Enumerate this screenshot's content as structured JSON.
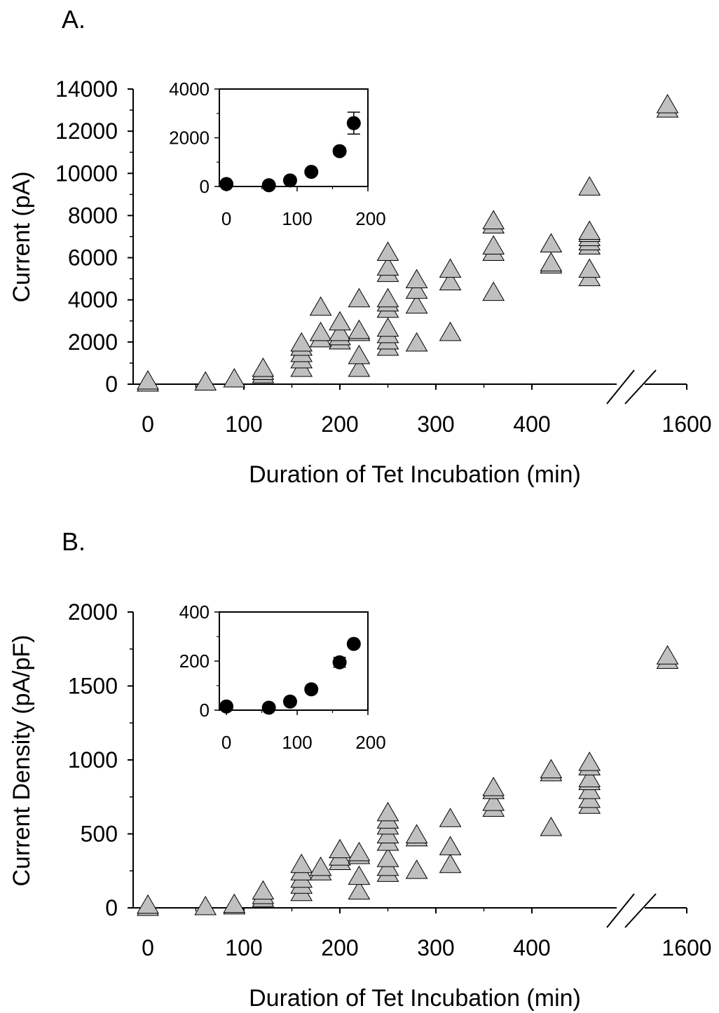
{
  "chart_data": [
    {
      "panel_label": "A.",
      "type": "scatter",
      "xlabel": "Duration of Tet Incubation (min)",
      "ylabel": "Current (pA)",
      "x_tick_labels": [
        "0",
        "100",
        "200",
        "300",
        "400",
        "1600"
      ],
      "x_ticks": [
        0,
        100,
        200,
        300,
        400,
        1600
      ],
      "y_ticks": [
        0,
        2000,
        4000,
        6000,
        8000,
        10000,
        12000,
        14000
      ],
      "y_tick_labels": [
        "0",
        "2000",
        "4000",
        "6000",
        "8000",
        "10000",
        "12000",
        "14000"
      ],
      "ylim": [
        0,
        14000
      ],
      "x_axis_break": [
        470,
        1580
      ],
      "marker": "triangle",
      "colors": {
        "marker_fill": "#c0c0c0",
        "marker_edge": "#000000"
      },
      "points": [
        {
          "x": 0,
          "y": 100
        },
        {
          "x": 0,
          "y": 200
        },
        {
          "x": 60,
          "y": 150
        },
        {
          "x": 90,
          "y": 300
        },
        {
          "x": 120,
          "y": 500
        },
        {
          "x": 120,
          "y": 650
        },
        {
          "x": 120,
          "y": 800
        },
        {
          "x": 160,
          "y": 800
        },
        {
          "x": 160,
          "y": 1200
        },
        {
          "x": 160,
          "y": 1500
        },
        {
          "x": 160,
          "y": 1800
        },
        {
          "x": 160,
          "y": 2000
        },
        {
          "x": 180,
          "y": 2200
        },
        {
          "x": 180,
          "y": 2500
        },
        {
          "x": 180,
          "y": 3700
        },
        {
          "x": 200,
          "y": 2100
        },
        {
          "x": 200,
          "y": 2300
        },
        {
          "x": 200,
          "y": 2500
        },
        {
          "x": 200,
          "y": 3000
        },
        {
          "x": 220,
          "y": 800
        },
        {
          "x": 220,
          "y": 1400
        },
        {
          "x": 220,
          "y": 2500
        },
        {
          "x": 220,
          "y": 2600
        },
        {
          "x": 220,
          "y": 4100
        },
        {
          "x": 250,
          "y": 1800
        },
        {
          "x": 250,
          "y": 2100
        },
        {
          "x": 250,
          "y": 2400
        },
        {
          "x": 250,
          "y": 2700
        },
        {
          "x": 250,
          "y": 3600
        },
        {
          "x": 250,
          "y": 3900
        },
        {
          "x": 250,
          "y": 4100
        },
        {
          "x": 250,
          "y": 5300
        },
        {
          "x": 250,
          "y": 5600
        },
        {
          "x": 250,
          "y": 6300
        },
        {
          "x": 280,
          "y": 2000
        },
        {
          "x": 280,
          "y": 3800
        },
        {
          "x": 280,
          "y": 4500
        },
        {
          "x": 280,
          "y": 5000
        },
        {
          "x": 315,
          "y": 2500
        },
        {
          "x": 315,
          "y": 4900
        },
        {
          "x": 315,
          "y": 5500
        },
        {
          "x": 360,
          "y": 4400
        },
        {
          "x": 360,
          "y": 6300
        },
        {
          "x": 360,
          "y": 6600
        },
        {
          "x": 360,
          "y": 7600
        },
        {
          "x": 360,
          "y": 7800
        },
        {
          "x": 420,
          "y": 5700
        },
        {
          "x": 420,
          "y": 5800
        },
        {
          "x": 420,
          "y": 6700
        },
        {
          "x": 460,
          "y": 5100
        },
        {
          "x": 460,
          "y": 5500
        },
        {
          "x": 460,
          "y": 6600
        },
        {
          "x": 460,
          "y": 6800
        },
        {
          "x": 460,
          "y": 7000
        },
        {
          "x": 460,
          "y": 7200
        },
        {
          "x": 460,
          "y": 7300
        },
        {
          "x": 460,
          "y": 9400
        },
        {
          "x": 1590,
          "y": 13100
        },
        {
          "x": 1590,
          "y": 13300
        }
      ],
      "inset": {
        "type": "scatter",
        "x_ticks": [
          0,
          100,
          200
        ],
        "x_tick_labels": [
          "0",
          "100",
          "200"
        ],
        "y_ticks": [
          0,
          2000,
          4000
        ],
        "y_tick_labels": [
          "0",
          "2000",
          "4000"
        ],
        "xlim": [
          -10,
          200
        ],
        "ylim": [
          0,
          4000
        ],
        "marker": "circle",
        "colors": {
          "marker_fill": "#000000"
        },
        "points": [
          {
            "x": 0,
            "y": 100,
            "err": 60
          },
          {
            "x": 60,
            "y": 50,
            "err": 40
          },
          {
            "x": 90,
            "y": 250,
            "err": 60
          },
          {
            "x": 120,
            "y": 600,
            "err": 80
          },
          {
            "x": 160,
            "y": 1450,
            "err": 130
          },
          {
            "x": 180,
            "y": 2600,
            "err": 450
          }
        ]
      }
    },
    {
      "panel_label": "B.",
      "type": "scatter",
      "xlabel": "Duration of Tet Incubation (min)",
      "ylabel": "Current Density (pA/pF)",
      "x_tick_labels": [
        "0",
        "100",
        "200",
        "300",
        "400",
        "1600"
      ],
      "x_ticks": [
        0,
        100,
        200,
        300,
        400,
        1600
      ],
      "y_ticks": [
        0,
        500,
        1000,
        1500,
        2000
      ],
      "y_tick_labels": [
        "0",
        "500",
        "1000",
        "1500",
        "2000"
      ],
      "ylim": [
        0,
        2000
      ],
      "x_axis_break": [
        470,
        1580
      ],
      "marker": "triangle",
      "colors": {
        "marker_fill": "#c0c0c0",
        "marker_edge": "#000000"
      },
      "points": [
        {
          "x": 0,
          "y": 10
        },
        {
          "x": 0,
          "y": 25
        },
        {
          "x": 60,
          "y": 15
        },
        {
          "x": 90,
          "y": 20
        },
        {
          "x": 90,
          "y": 30
        },
        {
          "x": 120,
          "y": 70
        },
        {
          "x": 120,
          "y": 90
        },
        {
          "x": 120,
          "y": 120
        },
        {
          "x": 160,
          "y": 110
        },
        {
          "x": 160,
          "y": 160
        },
        {
          "x": 160,
          "y": 200
        },
        {
          "x": 160,
          "y": 250
        },
        {
          "x": 160,
          "y": 300
        },
        {
          "x": 180,
          "y": 250
        },
        {
          "x": 180,
          "y": 280
        },
        {
          "x": 200,
          "y": 320
        },
        {
          "x": 200,
          "y": 350
        },
        {
          "x": 200,
          "y": 400
        },
        {
          "x": 220,
          "y": 120
        },
        {
          "x": 220,
          "y": 220
        },
        {
          "x": 220,
          "y": 360
        },
        {
          "x": 220,
          "y": 380
        },
        {
          "x": 250,
          "y": 240
        },
        {
          "x": 250,
          "y": 280
        },
        {
          "x": 250,
          "y": 340
        },
        {
          "x": 250,
          "y": 450
        },
        {
          "x": 250,
          "y": 500
        },
        {
          "x": 250,
          "y": 560
        },
        {
          "x": 250,
          "y": 600
        },
        {
          "x": 250,
          "y": 650
        },
        {
          "x": 280,
          "y": 260
        },
        {
          "x": 280,
          "y": 480
        },
        {
          "x": 280,
          "y": 500
        },
        {
          "x": 315,
          "y": 300
        },
        {
          "x": 315,
          "y": 420
        },
        {
          "x": 315,
          "y": 610
        },
        {
          "x": 360,
          "y": 680
        },
        {
          "x": 360,
          "y": 720
        },
        {
          "x": 360,
          "y": 800
        },
        {
          "x": 360,
          "y": 820
        },
        {
          "x": 420,
          "y": 550
        },
        {
          "x": 420,
          "y": 920
        },
        {
          "x": 420,
          "y": 940
        },
        {
          "x": 460,
          "y": 700
        },
        {
          "x": 460,
          "y": 740
        },
        {
          "x": 460,
          "y": 800
        },
        {
          "x": 460,
          "y": 860
        },
        {
          "x": 460,
          "y": 880
        },
        {
          "x": 460,
          "y": 960
        },
        {
          "x": 460,
          "y": 990
        },
        {
          "x": 1590,
          "y": 1680
        },
        {
          "x": 1590,
          "y": 1710
        }
      ],
      "inset": {
        "type": "scatter",
        "x_ticks": [
          0,
          100,
          200
        ],
        "x_tick_labels": [
          "0",
          "100",
          "200"
        ],
        "y_ticks": [
          0,
          200,
          400
        ],
        "y_tick_labels": [
          "0",
          "200",
          "400"
        ],
        "xlim": [
          -10,
          200
        ],
        "ylim": [
          0,
          400
        ],
        "marker": "circle",
        "colors": {
          "marker_fill": "#000000"
        },
        "points": [
          {
            "x": 0,
            "y": 15,
            "err": 8
          },
          {
            "x": 60,
            "y": 10,
            "err": 5
          },
          {
            "x": 90,
            "y": 35,
            "err": 8
          },
          {
            "x": 120,
            "y": 85,
            "err": 10
          },
          {
            "x": 160,
            "y": 195,
            "err": 20
          },
          {
            "x": 180,
            "y": 270,
            "err": 10
          }
        ]
      }
    }
  ]
}
